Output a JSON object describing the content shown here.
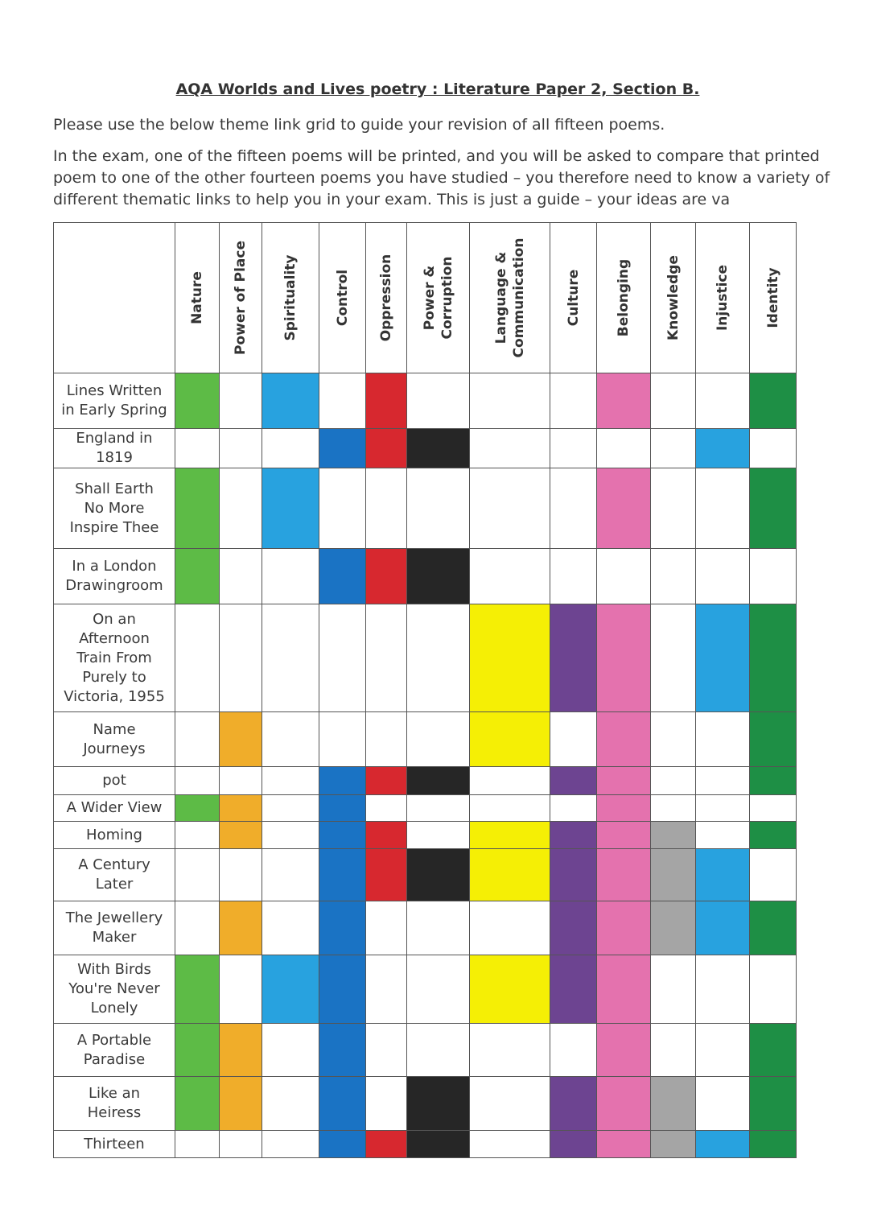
{
  "document": {
    "title": "AQA Worlds and Lives poetry : Literature Paper 2, Section B.",
    "intro": "Please use the below theme link grid to guide your revision of all fifteen poems.",
    "body": "In the exam, one of the fifteen poems will be printed, and you will be asked to compare that printed poem to one of the other fourteen poems you have studied – you therefore need to know a variety of different thematic links to help you in your exam. This is just a guide – your ideas are va"
  },
  "grid": {
    "themes": [
      {
        "key": "nature",
        "label": "Nature",
        "color": "#5dbb46"
      },
      {
        "key": "place",
        "label": "Power of Place",
        "color": "#f0ad2a"
      },
      {
        "key": "spirit",
        "label": "Spirituality",
        "color": "#28a2df"
      },
      {
        "key": "control",
        "label": "Control",
        "color": "#1a73c4"
      },
      {
        "key": "oppression",
        "label": "Oppression",
        "color": "#d7282f"
      },
      {
        "key": "power",
        "label": "Power &\nCorruption",
        "color": "#262626"
      },
      {
        "key": "language",
        "label": "Language &\nCommunication",
        "color": "#f5ef05"
      },
      {
        "key": "culture",
        "label": "Culture",
        "color": "#6d4491"
      },
      {
        "key": "belonging",
        "label": "Belonging",
        "color": "#e472ae"
      },
      {
        "key": "knowledge",
        "label": "Knowledge",
        "color": "#a5a5a5"
      },
      {
        "key": "injustice",
        "label": "Injustice",
        "color": "#28a2df"
      },
      {
        "key": "identity",
        "label": "Identity",
        "color": "#1e8f45"
      }
    ],
    "poems": [
      {
        "title": "Lines Written\nin Early Spring",
        "links": [
          "nature",
          "spirit",
          "oppression",
          "belonging",
          "identity"
        ]
      },
      {
        "title": "England in\n1819",
        "links": [
          "control",
          "oppression",
          "power",
          "injustice"
        ]
      },
      {
        "title": "Shall Earth\nNo More\nInspire Thee",
        "links": [
          "nature",
          "spirit",
          "belonging",
          "identity"
        ]
      },
      {
        "title": "In a London\nDrawingroom",
        "links": [
          "nature",
          "control",
          "oppression",
          "power"
        ]
      },
      {
        "title": "On an\nAfternoon\nTrain From\nPurely to\nVictoria, 1955",
        "links": [
          "language",
          "culture",
          "belonging",
          "injustice",
          "identity"
        ]
      },
      {
        "title": "Name\nJourneys",
        "links": [
          "place",
          "language",
          "belonging",
          "identity"
        ]
      },
      {
        "title": "pot",
        "links": [
          "control",
          "oppression",
          "power",
          "culture",
          "belonging",
          "identity"
        ]
      },
      {
        "title": "A Wider View",
        "links": [
          "nature",
          "place",
          "control",
          "belonging"
        ]
      },
      {
        "title": "Homing",
        "links": [
          "place",
          "control",
          "oppression",
          "language",
          "culture",
          "belonging",
          "knowledge",
          "identity"
        ]
      },
      {
        "title": "A Century\nLater",
        "links": [
          "control",
          "oppression",
          "power",
          "language",
          "culture",
          "belonging",
          "knowledge",
          "injustice"
        ]
      },
      {
        "title": "The Jewellery\nMaker",
        "links": [
          "place",
          "control",
          "culture",
          "belonging",
          "knowledge",
          "injustice",
          "identity"
        ]
      },
      {
        "title": "With Birds\nYou're Never\nLonely",
        "links": [
          "nature",
          "spirit",
          "control",
          "language",
          "culture",
          "belonging"
        ]
      },
      {
        "title": "A Portable\nParadise",
        "links": [
          "nature",
          "place",
          "control",
          "belonging",
          "identity"
        ]
      },
      {
        "title": "Like an\nHeiress",
        "links": [
          "nature",
          "place",
          "control",
          "power",
          "culture",
          "belonging",
          "knowledge",
          "identity"
        ]
      },
      {
        "title": "Thirteen",
        "links": [
          "control",
          "oppression",
          "power",
          "culture",
          "belonging",
          "knowledge",
          "injustice",
          "identity"
        ]
      }
    ]
  }
}
